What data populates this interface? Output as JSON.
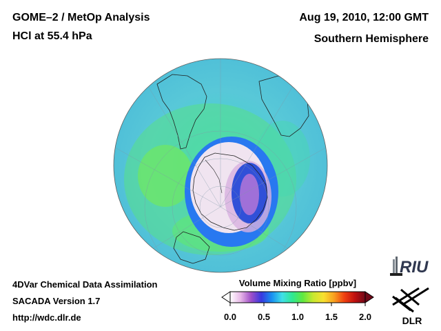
{
  "header": {
    "title_line1": "GOME–2 / MetOp Analysis",
    "title_line2": "HCl at 55.4 hPa",
    "date": "Aug 19, 2010, 12:00 GMT",
    "region": "Southern Hemisphere"
  },
  "footer": {
    "line1": "4DVar Chemical Data Assimilation",
    "line2": "SACADA Version 1.7",
    "url": "http://wdc.dlr.de"
  },
  "colorbar": {
    "title": "Volume Mixing Ratio [ppbv]",
    "ticks": [
      "0.0",
      "0.5",
      "1.0",
      "1.5",
      "2.0"
    ],
    "colors": [
      "#ffffff",
      "#e8b8e8",
      "#a050c8",
      "#3838e0",
      "#1890f0",
      "#40e0e8",
      "#30e890",
      "#60e840",
      "#c8e830",
      "#f8e030",
      "#f8a020",
      "#f04010",
      "#c01010",
      "#700818"
    ]
  },
  "logos": {
    "riu": "RIU",
    "dlr": "DLR"
  },
  "map": {
    "projection": "orthographic-south-polar",
    "background_color": "#58c8d8"
  }
}
